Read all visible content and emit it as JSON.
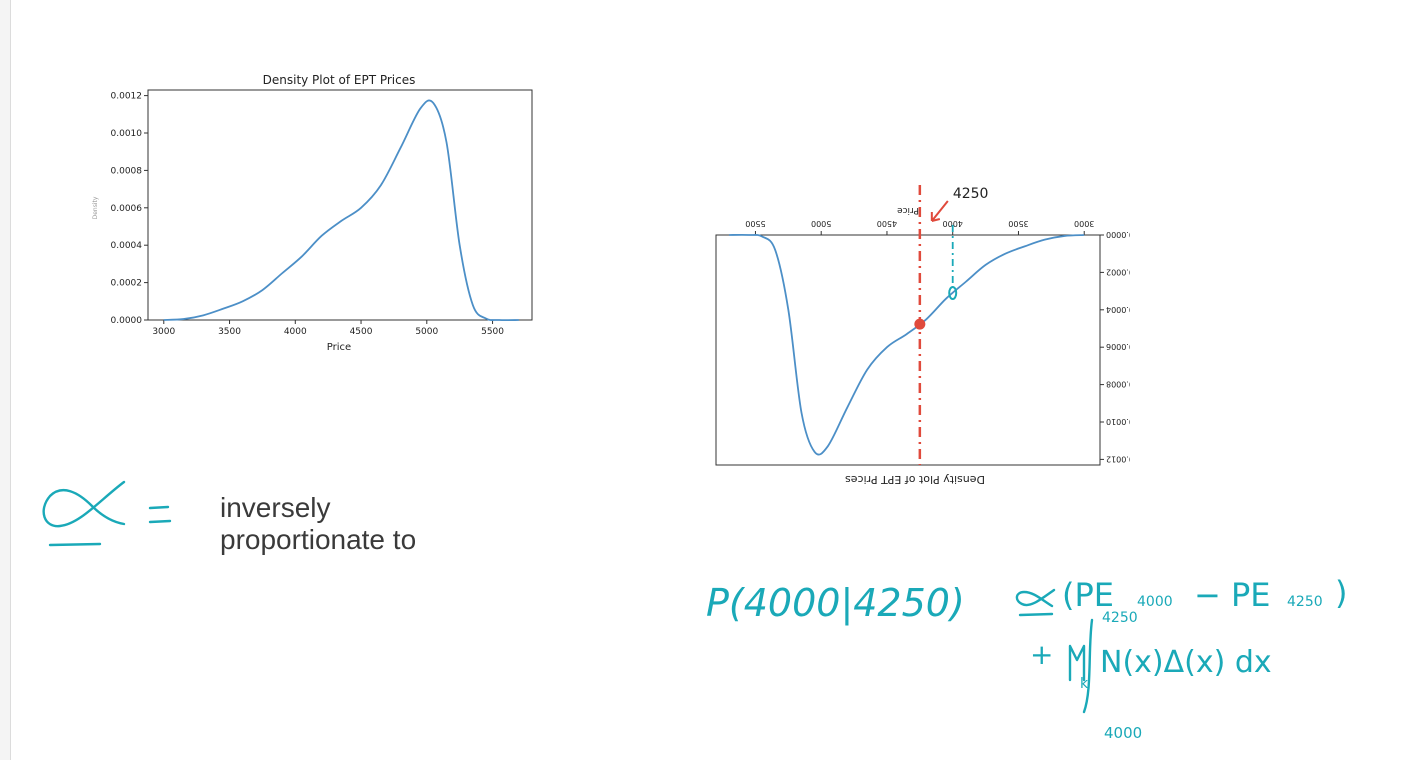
{
  "chart_data": {
    "type": "line",
    "title": "Density Plot of EPT Prices",
    "xlabel": "Price",
    "ylabel": "Density",
    "xlim": [
      2880,
      5800
    ],
    "ylim": [
      0,
      0.00123
    ],
    "xticks": [
      3000,
      3500,
      4000,
      4500,
      5000,
      5500
    ],
    "yticks": [
      0.0,
      0.0002,
      0.0004,
      0.0006,
      0.0008,
      0.001,
      0.0012
    ],
    "ytick_labels": [
      "0.0000",
      "0.0002",
      "0.0004",
      "0.0006",
      "0.0008",
      "0.0010",
      "0.0012"
    ],
    "series": [
      {
        "color": "#4c8fc7",
        "x": [
          3000,
          3150,
          3300,
          3450,
          3600,
          3750,
          3900,
          4050,
          4200,
          4350,
          4500,
          4650,
          4800,
          4950,
          5050,
          5150,
          5250,
          5350,
          5450,
          5550,
          5700
        ],
        "y": [
          0.0,
          5e-06,
          2.5e-05,
          6e-05,
          0.0001,
          0.00016,
          0.00025,
          0.00034,
          0.00045,
          0.00053,
          0.0006,
          0.00072,
          0.00092,
          0.00113,
          0.00116,
          0.00095,
          0.0004,
          8e-05,
          8e-06,
          0.0,
          0.0
        ]
      }
    ]
  },
  "annotation": {
    "label_4250": "4250",
    "red_line_price": 4250,
    "teal_line_price": 4000,
    "red_dot_price": 4250,
    "teal_dot_price": 4000,
    "colors": {
      "red": "#e04a3c",
      "teal": "#1aa9b8"
    }
  },
  "note": {
    "line1": "inversely",
    "line2": "proportionate to"
  },
  "handwriting": {
    "equation_left": "P(4000|4250)",
    "equation_terms": "(PE",
    "sub_4000": "4000",
    "minus_pe": "− PE",
    "sub_4250": "4250",
    "under_4250": "4250",
    "second_line": "+ M",
    "k": "k",
    "integral_body": "N(x)Δ(x) dx",
    "lower_limit": "4000"
  }
}
